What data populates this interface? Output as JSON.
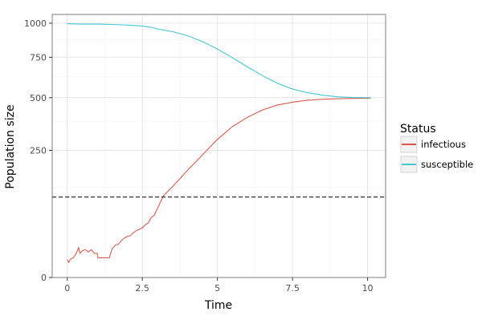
{
  "chart_data": {
    "type": "line",
    "title": "",
    "xlabel": "Time",
    "ylabel": "Population size",
    "xlim": [
      -0.5,
      10.6
    ],
    "y_axis_scale": "sqrt",
    "ylim": [
      0,
      1070
    ],
    "x_ticks": [
      0,
      2.5,
      5,
      7.5,
      10
    ],
    "x_tick_labels": [
      "0",
      "2.5",
      "5",
      "7.5",
      "10"
    ],
    "y_ticks": [
      0,
      250,
      500,
      750,
      1000
    ],
    "y_tick_labels": [
      "0",
      "250",
      "500",
      "750",
      "1000"
    ],
    "grid": true,
    "legend": {
      "title": "Status",
      "position": "right"
    },
    "reference_line": {
      "orientation": "horizontal",
      "y": 100,
      "style": "dashed",
      "color": "#000000"
    },
    "series": [
      {
        "name": "infectious",
        "color": "#dc5a4c",
        "x": [
          0.0,
          0.05,
          0.1,
          0.2,
          0.3,
          0.38,
          0.42,
          0.5,
          0.6,
          0.7,
          0.8,
          0.9,
          1.0,
          1.02,
          1.2,
          1.4,
          1.5,
          1.6,
          1.7,
          1.8,
          1.9,
          2.0,
          2.1,
          2.2,
          2.3,
          2.4,
          2.5,
          2.6,
          2.7,
          2.8,
          2.9,
          3.0,
          3.2,
          3.5,
          4.0,
          4.5,
          5.0,
          5.5,
          6.0,
          6.5,
          7.0,
          7.5,
          8.0,
          8.5,
          9.0,
          9.5,
          10.1
        ],
        "values": [
          5,
          3.5,
          5,
          6,
          9,
          14,
          9,
          11,
          12,
          10,
          12,
          9,
          9,
          6,
          6,
          6,
          13,
          16,
          17,
          21,
          24,
          26,
          27,
          31,
          34,
          36,
          38,
          43,
          46,
          56,
          60,
          73,
          103,
          127,
          177,
          232,
          295,
          352,
          397,
          434,
          460,
          475,
          486,
          491,
          494,
          496,
          497
        ]
      },
      {
        "name": "susceptible",
        "color": "#45c7d4",
        "x": [
          0.0,
          0.5,
          1.0,
          1.5,
          2.0,
          2.5,
          2.8,
          3.0,
          3.5,
          4.0,
          4.5,
          5.0,
          5.5,
          6.0,
          6.5,
          7.0,
          7.5,
          8.0,
          8.5,
          9.0,
          9.5,
          10.1
        ],
        "values": [
          996,
          993,
          993,
          990,
          985,
          978,
          968,
          955,
          935,
          904,
          861,
          807,
          747,
          686,
          630,
          583,
          549,
          528,
          514,
          505,
          501,
          500
        ]
      }
    ]
  }
}
